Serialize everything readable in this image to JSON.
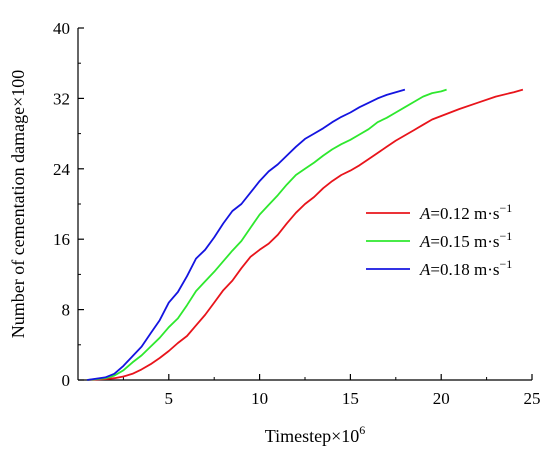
{
  "chart_data": {
    "type": "line",
    "xlabel": "Timestep×10",
    "xlabel_exp": "6",
    "ylabel": "Number of cementation damage×100",
    "xlim": [
      0,
      25
    ],
    "ylim": [
      0,
      40
    ],
    "xticks": [
      5,
      10,
      15,
      20,
      25
    ],
    "yticks": [
      0,
      8,
      16,
      24,
      32,
      40
    ],
    "grid": false,
    "legend_position": "right",
    "series": [
      {
        "name": "A=0.12 m·s−1",
        "legend": {
          "var": "A",
          "rest": "=0.12 m·s",
          "sup": "−1"
        },
        "color": "#e8141b",
        "x": [
          0.5,
          1.5,
          2.0,
          2.5,
          3.0,
          3.5,
          4.0,
          4.5,
          5.0,
          5.5,
          6.0,
          6.5,
          7.0,
          7.5,
          8.0,
          8.5,
          9.0,
          9.5,
          10.0,
          10.5,
          11.0,
          11.5,
          12.0,
          12.5,
          13.0,
          13.5,
          14.0,
          14.5,
          15.0,
          15.5,
          16.0,
          16.5,
          17.0,
          17.5,
          18.0,
          18.5,
          19.0,
          19.5,
          20.0,
          21.0,
          22.0,
          23.0,
          24.0,
          24.5
        ],
        "y": [
          0,
          0.1,
          0.2,
          0.4,
          0.7,
          1.2,
          1.8,
          2.5,
          3.3,
          4.2,
          5.0,
          6.2,
          7.4,
          8.8,
          10.2,
          11.3,
          12.7,
          14.0,
          14.8,
          15.5,
          16.5,
          17.8,
          19.0,
          20.0,
          20.8,
          21.8,
          22.6,
          23.3,
          23.8,
          24.4,
          25.1,
          25.8,
          26.5,
          27.2,
          27.8,
          28.4,
          29.0,
          29.6,
          30.0,
          30.8,
          31.5,
          32.2,
          32.7,
          33.0
        ]
      },
      {
        "name": "A=0.15 m·s−1",
        "legend": {
          "var": "A",
          "rest": "=0.15 m·s",
          "sup": "−1"
        },
        "color": "#2ee82e",
        "x": [
          0.5,
          1.5,
          2.0,
          2.5,
          3.0,
          3.5,
          4.0,
          4.5,
          5.0,
          5.5,
          6.0,
          6.5,
          7.0,
          7.5,
          8.0,
          8.5,
          9.0,
          9.5,
          10.0,
          10.5,
          11.0,
          11.5,
          12.0,
          12.5,
          13.0,
          13.5,
          14.0,
          14.5,
          15.0,
          15.5,
          16.0,
          16.5,
          17.0,
          17.5,
          18.0,
          18.5,
          19.0,
          19.5,
          20.0,
          20.3
        ],
        "y": [
          0,
          0.2,
          0.5,
          1.1,
          2.0,
          2.8,
          3.8,
          4.8,
          6.0,
          7.0,
          8.5,
          10.1,
          11.2,
          12.3,
          13.5,
          14.7,
          15.8,
          17.3,
          18.8,
          19.9,
          21.0,
          22.2,
          23.3,
          24.0,
          24.7,
          25.5,
          26.2,
          26.8,
          27.3,
          27.9,
          28.5,
          29.3,
          29.8,
          30.4,
          31.0,
          31.6,
          32.2,
          32.6,
          32.8,
          33.0
        ]
      },
      {
        "name": "A=0.18 m·s−1",
        "legend": {
          "var": "A",
          "rest": "=0.18 m·s",
          "sup": "−1"
        },
        "color": "#1414e0",
        "x": [
          0.5,
          1.5,
          2.0,
          2.5,
          3.0,
          3.5,
          4.0,
          4.5,
          5.0,
          5.5,
          6.0,
          6.5,
          7.0,
          7.5,
          8.0,
          8.5,
          9.0,
          9.5,
          10.0,
          10.5,
          11.0,
          11.5,
          12.0,
          12.5,
          13.0,
          13.5,
          14.0,
          14.5,
          15.0,
          15.5,
          16.0,
          16.5,
          17.0,
          17.5,
          18.0
        ],
        "y": [
          0,
          0.3,
          0.7,
          1.6,
          2.7,
          3.8,
          5.3,
          6.8,
          8.8,
          10.0,
          11.8,
          13.8,
          14.8,
          16.2,
          17.8,
          19.2,
          20.0,
          21.3,
          22.6,
          23.7,
          24.5,
          25.5,
          26.5,
          27.4,
          28.0,
          28.6,
          29.3,
          29.9,
          30.4,
          31.0,
          31.5,
          32.0,
          32.4,
          32.7,
          33.0
        ]
      }
    ]
  }
}
